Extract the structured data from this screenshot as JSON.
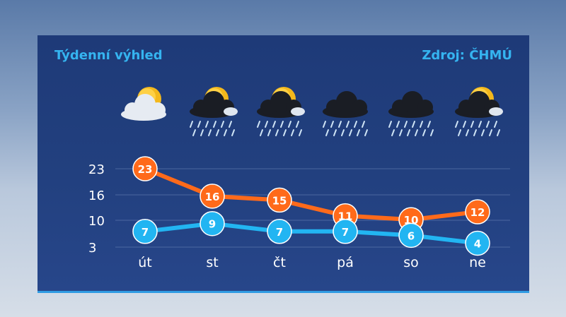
{
  "header": {
    "title": "Týdenní výhled",
    "source": "Zdroj: ČHMÚ"
  },
  "colors": {
    "max_series": "#ff6a1a",
    "min_series": "#22b5f2",
    "accent": "#35b4f0"
  },
  "icons": [
    "sun-cloud-icon",
    "sun-storm-cloud-rain-icon",
    "sun-storm-cloud-rain-icon",
    "storm-cloud-rain-icon",
    "storm-cloud-rain-icon",
    "sun-storm-cloud-rain-icon"
  ],
  "chart_data": {
    "type": "line",
    "categories": [
      "út",
      "st",
      "čt",
      "pá",
      "so",
      "ne"
    ],
    "series": [
      {
        "values": [
          23,
          16,
          15,
          11,
          10,
          12
        ]
      },
      {
        "values": [
          7,
          9,
          7,
          7,
          6,
          4
        ]
      }
    ],
    "yticks": [
      "23",
      "16",
      "10",
      "3"
    ],
    "ylim": [
      3,
      23
    ],
    "grid": true
  }
}
